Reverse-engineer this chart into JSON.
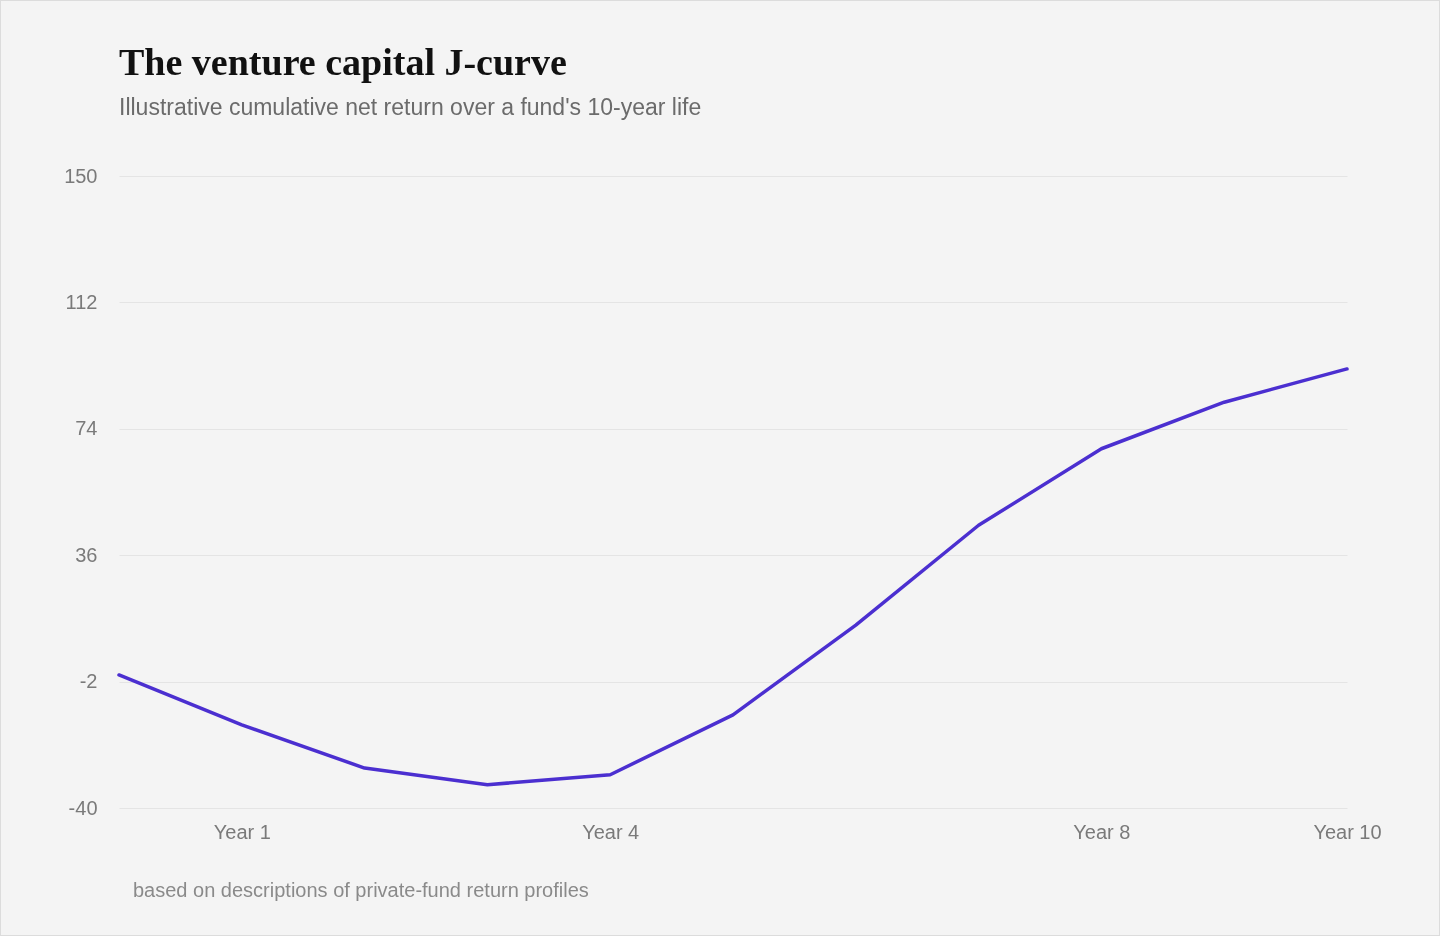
{
  "chart_data": {
    "type": "line",
    "title": "The venture capital J-curve",
    "subtitle": "Illustrative cumulative net return over a fund's 10-year life",
    "categories": [
      null,
      "Year 1",
      null,
      null,
      "Year 4",
      null,
      null,
      null,
      "Year 8",
      null,
      "Year 10"
    ],
    "series": [
      {
        "color": "#4b2fd0",
        "values": [
          0,
          -15,
          -28,
          -33,
          -30,
          -12,
          15,
          45,
          68,
          82,
          92
        ]
      }
    ],
    "ylim": [
      -40,
      150
    ],
    "yticks": [
      -40,
      -2,
      36,
      74,
      112,
      150
    ],
    "grid": "y",
    "annotations": [
      "based on descriptions of private-fund return profiles"
    ]
  }
}
